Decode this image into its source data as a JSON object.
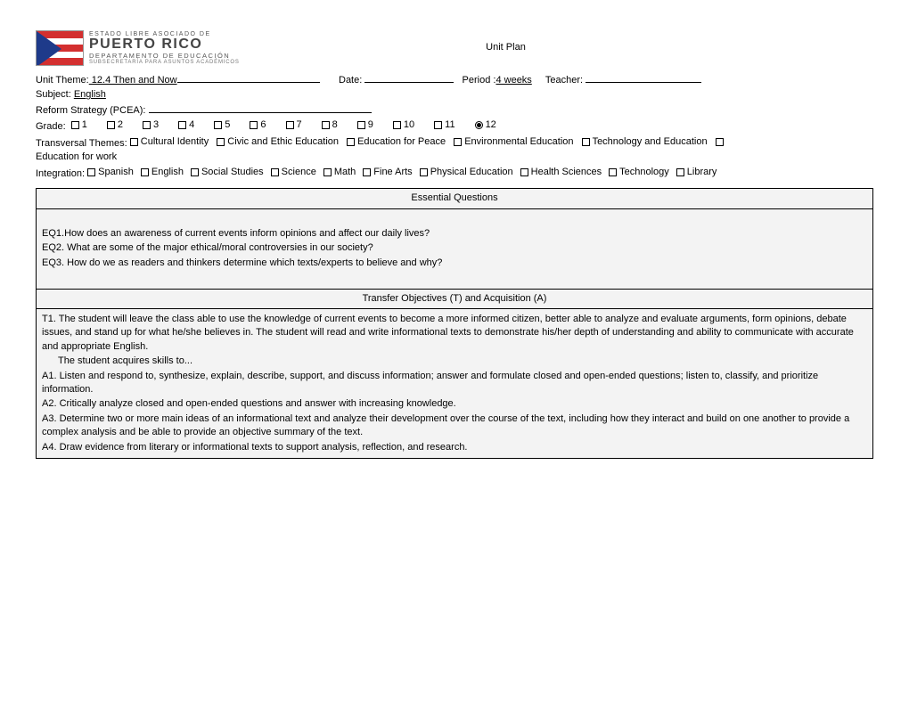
{
  "logo": {
    "line1": "ESTADO LIBRE ASOCIADO DE",
    "line2": "PUERTO RICO",
    "line3": "DEPARTAMENTO DE EDUCACIÓN",
    "line4": "SUBSECRETARÍA PARA ASUNTOS ACADÉMICOS"
  },
  "title": "Unit Plan",
  "fields": {
    "unit_theme_label": "Unit Theme:",
    "unit_theme_value": " 12.4 Then and Now",
    "date_label": "Date:",
    "period_label": "Period :",
    "period_value": "4 weeks",
    "teacher_label": "Teacher:",
    "subject_label": "Subject:",
    "subject_value": "English",
    "reform_label": "Reform Strategy (PCEA):",
    "grade_label": "Grade:",
    "transversal_label": "Transversal Themes:",
    "edu_for_work": "Education for work",
    "integration_label": "Integration:"
  },
  "grades": [
    "1",
    "2",
    "3",
    "4",
    "5",
    "6",
    "7",
    "8",
    "9",
    "10",
    "11",
    "12"
  ],
  "grade_selected_index": 11,
  "transversal_themes": [
    "Cultural Identity",
    "Civic and Ethic Education",
    "Education for Peace",
    "Environmental Education",
    "Technology and Education"
  ],
  "integration": [
    "Spanish",
    "English",
    "Social Studies",
    "Science",
    "Math",
    "Fine Arts",
    "Physical Education",
    "Health Sciences",
    "Technology",
    "Library"
  ],
  "essential_questions": {
    "header": "Essential Questions",
    "eq1": "EQ1.How does an awareness of current events inform opinions and affect our daily lives?",
    "eq2": "EQ2. What are some of the major ethical/moral controversies in our society?",
    "eq3": "EQ3. How do we as readers and thinkers determine which texts/experts to believe and why?"
  },
  "transfer": {
    "header": "Transfer Objectives (T) and Acquisition  (A)",
    "t1": "T1. The student will leave the class able to use the knowledge of current events to become a more informed citizen, better able to analyze and evaluate arguments, form opinions, debate issues, and stand up for what he/she believes in. The student will read and write informational texts to demonstrate his/her depth of understanding and ability to communicate with accurate and appropriate English.",
    "acq_intro": "The student acquires skills to...",
    "a1": "A1. Listen and respond to, synthesize, explain, describe, support, and discuss information; answer and formulate closed and open-ended questions; listen to, classify, and prioritize information.",
    "a2": "A2. Critically analyze closed and open-ended questions and answer with increasing knowledge.",
    "a3": "A3. Determine two or more main ideas of an informational text and analyze their development over the course of the text, including how they interact and build on one another to provide a complex analysis and be able to provide an objective summary of the text.",
    "a4": "A4. Draw evidence from literary or informational texts to support analysis, reflection, and research."
  },
  "blank_widths": {
    "theme_trail": "160px",
    "date": "100px",
    "teacher": "130px",
    "reform": "250px"
  }
}
